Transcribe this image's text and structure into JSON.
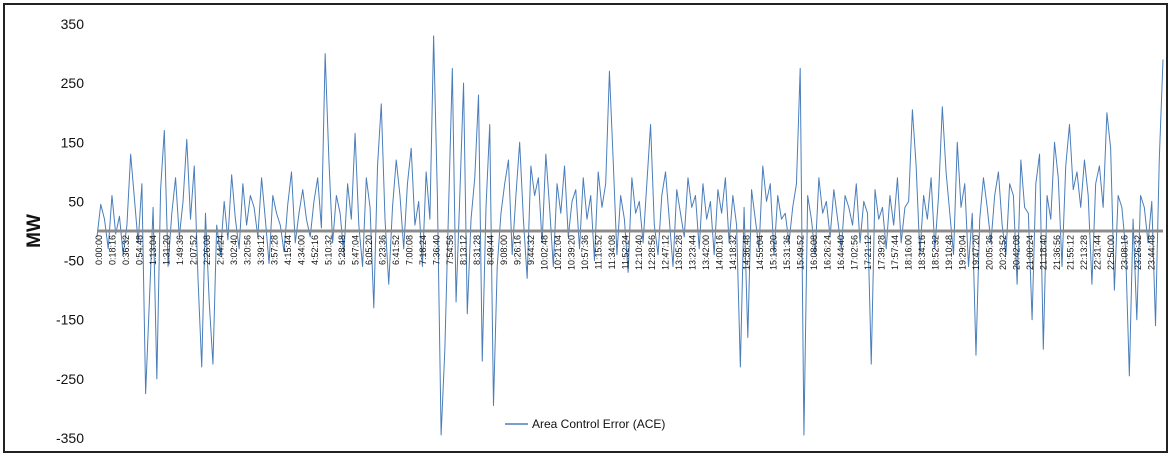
{
  "chart_data": {
    "type": "line",
    "title": "",
    "xlabel": "",
    "ylabel": "MW",
    "ylim": [
      -350,
      350
    ],
    "y_ticks": [
      350,
      250,
      150,
      50,
      -50,
      -150,
      -250,
      -350
    ],
    "x_tick_labels": [
      "0:00:00",
      "0:18:16",
      "0:36:32",
      "0:54:48",
      "1:13:04",
      "1:31:20",
      "1:49:36",
      "2:07:52",
      "2:26:08",
      "2:44:24",
      "3:02:40",
      "3:20:56",
      "3:39:12",
      "3:57:28",
      "4:15:44",
      "4:34:00",
      "4:52:16",
      "5:10:32",
      "5:28:48",
      "5:47:04",
      "6:05:20",
      "6:23:36",
      "6:41:52",
      "7:00:08",
      "7:18:24",
      "7:36:40",
      "7:54:56",
      "8:13:12",
      "8:31:28",
      "8:49:44",
      "9:08:00",
      "9:26:16",
      "9:44:32",
      "10:02:48",
      "10:21:04",
      "10:39:20",
      "10:57:36",
      "11:15:52",
      "11:34:08",
      "11:52:24",
      "12:10:40",
      "12:28:56",
      "12:47:12",
      "13:05:28",
      "13:23:44",
      "13:42:00",
      "14:00:16",
      "14:18:32",
      "14:36:48",
      "14:55:04",
      "15:13:20",
      "15:31:36",
      "15:49:52",
      "16:08:08",
      "16:26:24",
      "16:44:40",
      "17:02:56",
      "17:21:12",
      "17:39:28",
      "17:57:44",
      "18:16:00",
      "18:34:16",
      "18:52:32",
      "19:10:48",
      "19:29:04",
      "19:47:20",
      "20:05:36",
      "20:23:52",
      "20:42:08",
      "21:00:24",
      "21:18:40",
      "21:36:56",
      "21:55:12",
      "22:13:28",
      "22:31:44",
      "22:50:00",
      "23:08:16",
      "23:26:32",
      "23:44:48"
    ],
    "grid": false,
    "zero_line": true,
    "legend_placement": "bottom-center",
    "series": [
      {
        "name": "Area Control Error (ACE)",
        "color": "#4a7ebb",
        "values": [
          -10,
          45,
          20,
          -30,
          60,
          -5,
          25,
          -40,
          10,
          130,
          55,
          -20,
          80,
          -275,
          -120,
          40,
          -250,
          70,
          170,
          -60,
          30,
          90,
          -10,
          50,
          155,
          20,
          110,
          -80,
          -230,
          30,
          -120,
          -225,
          10,
          -40,
          50,
          -15,
          95,
          20,
          -30,
          80,
          10,
          60,
          40,
          -10,
          90,
          20,
          -55,
          60,
          30,
          10,
          -35,
          45,
          100,
          -20,
          30,
          70,
          20,
          -10,
          50,
          90,
          5,
          300,
          120,
          -20,
          60,
          30,
          -40,
          80,
          20,
          165,
          10,
          -60,
          90,
          40,
          -130,
          110,
          215,
          20,
          -90,
          40,
          120,
          60,
          -30,
          80,
          140,
          10,
          50,
          -60,
          100,
          20,
          330,
          60,
          -345,
          -200,
          40,
          275,
          -120,
          60,
          250,
          -140,
          20,
          90,
          230,
          -220,
          40,
          180,
          -295,
          -60,
          30,
          80,
          120,
          -40,
          60,
          150,
          20,
          -80,
          110,
          60,
          90,
          -20,
          130,
          40,
          -60,
          80,
          30,
          110,
          -10,
          50,
          70,
          -30,
          90,
          20,
          60,
          -50,
          100,
          40,
          80,
          270,
          120,
          -40,
          60,
          20,
          -70,
          90,
          30,
          50,
          -20,
          80,
          180,
          10,
          -40,
          60,
          100,
          20,
          -60,
          70,
          30,
          -10,
          90,
          40,
          60,
          -30,
          80,
          20,
          50,
          -40,
          70,
          30,
          90,
          -20,
          60,
          10,
          -230,
          40,
          -180,
          70,
          20,
          -30,
          110,
          50,
          80,
          -40,
          60,
          20,
          30,
          -20,
          40,
          80,
          275,
          -345,
          60,
          20,
          -40,
          90,
          30,
          50,
          -10,
          70,
          20,
          -30,
          60,
          40,
          10,
          80,
          -20,
          50,
          30,
          -225,
          70,
          20,
          40,
          -30,
          60,
          10,
          90,
          -20,
          40,
          50,
          205,
          110,
          -40,
          60,
          20,
          90,
          -30,
          60,
          210,
          100,
          30,
          -40,
          150,
          40,
          80,
          -60,
          30,
          -210,
          20,
          90,
          40,
          -20,
          60,
          100,
          10,
          -40,
          80,
          60,
          -90,
          120,
          40,
          30,
          -150,
          80,
          130,
          -200,
          60,
          20,
          150,
          90,
          -60,
          110,
          180,
          70,
          100,
          40,
          120,
          60,
          -90,
          80,
          110,
          40,
          200,
          140,
          -100,
          60,
          40,
          -30,
          -245,
          20,
          -150,
          60,
          40,
          -20,
          50,
          -160,
          120,
          290
        ]
      }
    ]
  }
}
